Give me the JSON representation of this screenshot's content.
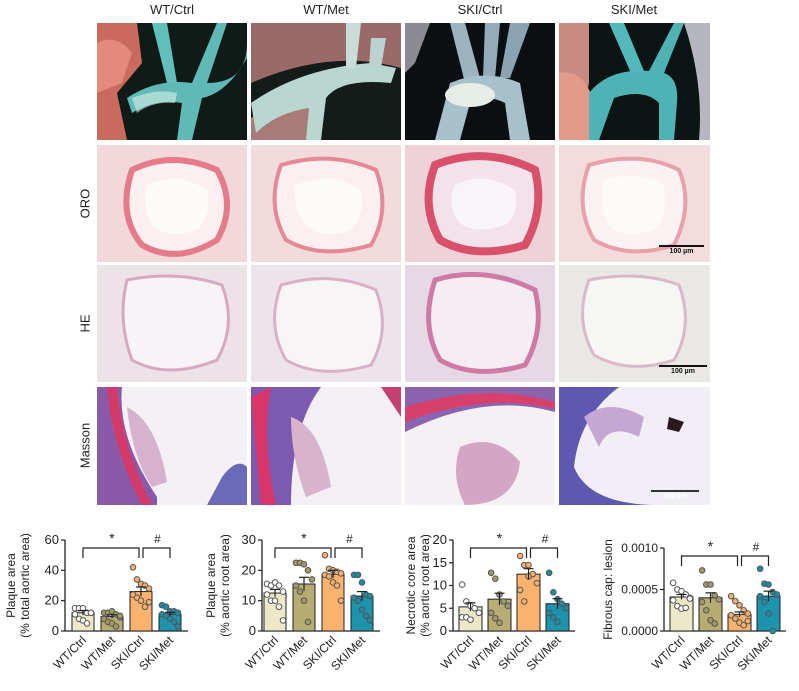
{
  "figure": {
    "column_titles": [
      "WT/Ctrl",
      "WT/Met",
      "SKI/Ctrl",
      "SKI/Met"
    ],
    "row_labels": [
      "ORO",
      "HE",
      "Masson"
    ],
    "scale_bar_label": "100 µm",
    "group_colors": {
      "WT/Ctrl": "#ede9c8",
      "WT/Met": "#b7ac72",
      "SKI/Ctrl": "#f9b36e",
      "SKI/Met": "#1d93ad"
    },
    "dot_colors": {
      "WT/Ctrl": "#ffffff",
      "WT/Met": "#a09a66",
      "SKI/Ctrl": "#f7b06a",
      "SKI/Met": "#1a8ca6"
    }
  },
  "chart_data": [
    {
      "type": "bar",
      "title": "",
      "ylabel": "Plaque area\n(% total aortic area)",
      "ylabel_lines": [
        "Plaque area",
        "(% total aortic area)"
      ],
      "xlabel": "",
      "categories": [
        "WT/Ctrl",
        "WT/Met",
        "SKI/Ctrl",
        "SKI/Met"
      ],
      "values": [
        12,
        9.5,
        26,
        11
      ],
      "sem": [
        1.5,
        1.2,
        3,
        1.3
      ],
      "points": [
        [
          15,
          15,
          15,
          12,
          12,
          11,
          8,
          7,
          5,
          12
        ],
        [
          12,
          12,
          13,
          11,
          9,
          8,
          6,
          5,
          3,
          10
        ],
        [
          42,
          34,
          31,
          30,
          28,
          24,
          22,
          20,
          16,
          19
        ],
        [
          17,
          16,
          13,
          13,
          12,
          11,
          10,
          8,
          6,
          3
        ]
      ],
      "ylim": [
        0,
        60
      ],
      "yticks": [
        0,
        20,
        40,
        60
      ],
      "significance": [
        {
          "from": "WT/Ctrl",
          "to": "SKI/Ctrl",
          "label": "*"
        },
        {
          "from": "SKI/Ctrl",
          "to": "SKI/Met",
          "label": "#"
        }
      ]
    },
    {
      "type": "bar",
      "title": "",
      "ylabel": "Plaque area\n(% aortic root area)",
      "ylabel_lines": [
        "Plaque area",
        "(% aortic root area)"
      ],
      "xlabel": "",
      "categories": [
        "WT/Ctrl",
        "WT/Met",
        "SKI/Ctrl",
        "SKI/Met"
      ],
      "values": [
        12.5,
        15.5,
        18.7,
        11.5
      ],
      "sem": [
        1.2,
        2.2,
        1.3,
        1.5
      ],
      "points": [
        [
          15.5,
          15,
          16,
          15,
          13,
          12,
          10,
          10,
          8,
          3.5
        ],
        [
          22.5,
          22.5,
          22,
          20,
          17,
          15,
          13,
          10,
          3
        ],
        [
          25,
          20.5,
          20,
          19.5,
          19,
          18.5,
          18,
          16,
          15,
          10
        ],
        [
          18.5,
          18.5,
          16,
          12,
          11.5,
          11,
          10,
          7,
          5,
          3.5
        ]
      ],
      "ylim": [
        0,
        30
      ],
      "yticks": [
        0,
        10,
        20,
        30
      ],
      "significance": [
        {
          "from": "WT/Ctrl",
          "to": "SKI/Ctrl",
          "label": "*"
        },
        {
          "from": "SKI/Ctrl",
          "to": "SKI/Met",
          "label": "#"
        }
      ]
    },
    {
      "type": "bar",
      "title": "",
      "ylabel": "Necrotic core area\n(% aortic root area)",
      "ylabel_lines": [
        "Necrotic core area",
        "(% aortic root area)"
      ],
      "xlabel": "",
      "categories": [
        "WT/Ctrl",
        "WT/Met",
        "SKI/Ctrl",
        "SKI/Met"
      ],
      "values": [
        5.3,
        7,
        12.5,
        6
      ],
      "sem": [
        0.9,
        1.3,
        1.2,
        1.1
      ],
      "points": [
        [
          10.2,
          6.5,
          5.5,
          5,
          4,
          3,
          3,
          2.5
        ],
        [
          12.8,
          11.5,
          8,
          6.5,
          5.5,
          4,
          2.8,
          1.8
        ],
        [
          16.5,
          14.5,
          14.5,
          12.5,
          10.5,
          9,
          6.5,
          12
        ],
        [
          12.8,
          8.5,
          7,
          6,
          5,
          4,
          3,
          2
        ]
      ],
      "ylim": [
        0,
        20
      ],
      "yticks": [
        0,
        5,
        10,
        15,
        20
      ],
      "significance": [
        {
          "from": "WT/Ctrl",
          "to": "SKI/Ctrl",
          "label": "*"
        },
        {
          "from": "SKI/Ctrl",
          "to": "SKI/Met",
          "label": "#"
        }
      ]
    },
    {
      "type": "bar",
      "title": "",
      "ylabel": "Fibrous cap: lesion",
      "ylabel_lines": [
        "Fibrous cap: lesion"
      ],
      "xlabel": "",
      "categories": [
        "WT/Ctrl",
        "WT/Met",
        "SKI/Ctrl",
        "SKI/Met"
      ],
      "values": [
        0.00041,
        0.0004,
        0.0002,
        0.00042
      ],
      "sem": [
        3e-05,
        6e-05,
        3e-05,
        6e-05
      ],
      "points": [
        [
          0.00058,
          0.0005,
          0.00048,
          0.00044,
          0.0004,
          0.00037,
          0.0003,
          0.00027,
          0.00028,
          0.00039
        ],
        [
          0.00073,
          0.00056,
          0.00056,
          0.00043,
          0.00038,
          0.00035,
          0.00025,
          0.00013,
          9e-05
        ],
        [
          0.00042,
          0.00036,
          0.00031,
          0.00025,
          0.00021,
          0.00019,
          0.00015,
          0.0001,
          7e-05,
          0.00012
        ],
        [
          0.00075,
          0.00057,
          0.00056,
          0.00047,
          0.00044,
          0.00042,
          0.00035,
          0.00021,
          0.0
        ]
      ],
      "ylim": [
        0,
        0.001
      ],
      "yticks": [
        0.0,
        0.0005,
        0.001
      ],
      "ytick_labels": [
        "0.0000",
        "0.0005",
        "0.0010"
      ],
      "significance": [
        {
          "from": "WT/Ctrl",
          "to": "SKI/Ctrl",
          "label": "*"
        },
        {
          "from": "SKI/Ctrl",
          "to": "SKI/Met",
          "label": "#"
        }
      ]
    }
  ]
}
